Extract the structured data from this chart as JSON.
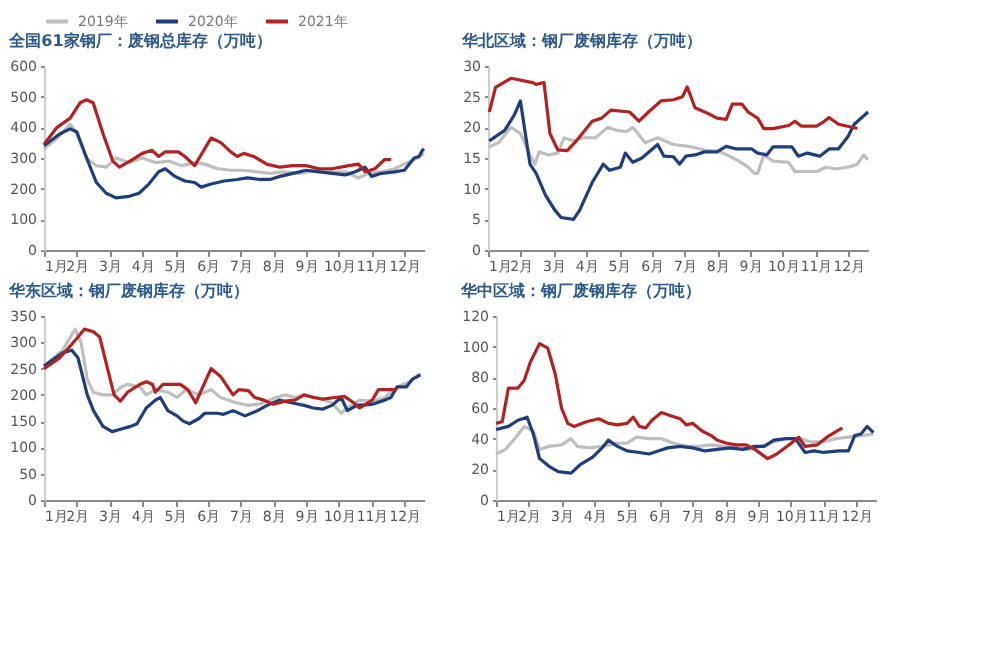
{
  "chart_data": [
    {
      "type": "line",
      "title": "全国61家钢厂：废钢总库存（万吨）",
      "xlim": [
        1,
        12.6
      ],
      "ylim": [
        0,
        600
      ],
      "yticks": [
        0,
        100,
        200,
        300,
        400,
        500,
        600
      ],
      "legend": "top",
      "grid": false,
      "xticks": [
        {
          "value": 1,
          "label": "1月"
        },
        {
          "value": 2,
          "label": "2月"
        },
        {
          "value": 3,
          "label": "3月"
        },
        {
          "value": 4,
          "label": "4月"
        },
        {
          "value": 5,
          "label": "5月"
        },
        {
          "value": 6,
          "label": "6月"
        },
        {
          "value": 7,
          "label": "7月"
        },
        {
          "value": 8,
          "label": "8月"
        },
        {
          "value": 9,
          "label": "9月"
        },
        {
          "value": 10,
          "label": "10月"
        },
        {
          "value": 11,
          "label": "11月"
        },
        {
          "value": 12,
          "label": "12月"
        }
      ],
      "series": [
        {
          "name": "2019年",
          "color": "#bfbfbf",
          "x": [
            1.0,
            1.4,
            1.8,
            2.0,
            2.3,
            2.6,
            2.9,
            3.2,
            3.6,
            4.0,
            4.4,
            4.8,
            5.2,
            5.6,
            5.9,
            6.3,
            6.7,
            7.0,
            7.5,
            7.9,
            8.3,
            8.8,
            9.3,
            9.8,
            10.2,
            10.6,
            10.9,
            11.3,
            11.7,
            12.0,
            12.4,
            12.6
          ],
          "values": [
            330,
            365,
            410,
            380,
            300,
            275,
            270,
            300,
            285,
            300,
            285,
            290,
            275,
            285,
            280,
            265,
            260,
            260,
            255,
            250,
            255,
            250,
            260,
            255,
            255,
            235,
            250,
            255,
            265,
            280,
            300,
            315
          ]
        },
        {
          "name": "2020年",
          "color": "#1f3d7a",
          "x": [
            1.0,
            1.5,
            1.8,
            2.0,
            2.3,
            2.6,
            2.9,
            3.2,
            3.6,
            3.9,
            4.2,
            4.5,
            4.7,
            5.0,
            5.3,
            5.6,
            5.8,
            6.1,
            6.5,
            6.9,
            7.2,
            7.6,
            7.9,
            8.2,
            8.6,
            9.0,
            9.4,
            9.8,
            10.2,
            10.5,
            10.8,
            11.0,
            11.3,
            11.7,
            12.0,
            12.3,
            12.45,
            12.55,
            12.6
          ],
          "values": [
            340,
            380,
            395,
            385,
            300,
            220,
            185,
            170,
            175,
            185,
            215,
            255,
            265,
            240,
            225,
            220,
            205,
            215,
            225,
            230,
            235,
            230,
            230,
            240,
            250,
            260,
            255,
            250,
            245,
            255,
            270,
            240,
            250,
            255,
            260,
            300,
            305,
            325,
            330
          ]
        },
        {
          "name": "2021年",
          "color": "#b22222",
          "x": [
            1.0,
            1.4,
            1.8,
            2.1,
            2.3,
            2.5,
            2.8,
            3.1,
            3.3,
            3.7,
            4.0,
            4.3,
            4.5,
            4.7,
            5.1,
            5.3,
            5.6,
            6.1,
            6.4,
            6.7,
            6.9,
            7.1,
            7.4,
            7.8,
            8.2,
            8.6,
            9.0,
            9.4,
            9.8,
            10.3,
            10.6,
            10.8,
            11.1,
            11.4,
            11.6
          ],
          "values": [
            345,
            400,
            430,
            480,
            490,
            480,
            380,
            290,
            270,
            295,
            315,
            325,
            305,
            320,
            320,
            305,
            275,
            365,
            350,
            320,
            305,
            315,
            305,
            280,
            270,
            275,
            275,
            265,
            265,
            275,
            280,
            255,
            265,
            295,
            295
          ]
        }
      ]
    },
    {
      "type": "line",
      "title": "华北区域：钢厂废钢库存（万吨）",
      "xlim": [
        1,
        12.6
      ],
      "ylim": [
        0,
        30
      ],
      "yticks": [
        0,
        5,
        10,
        15,
        20,
        25,
        30
      ],
      "legend": "top",
      "grid": false,
      "xticks": [
        {
          "value": 1,
          "label": "1月"
        },
        {
          "value": 2,
          "label": "2月"
        },
        {
          "value": 3,
          "label": "3月"
        },
        {
          "value": 4,
          "label": "4月"
        },
        {
          "value": 5,
          "label": "5月"
        },
        {
          "value": 6,
          "label": "6月"
        },
        {
          "value": 7,
          "label": "7月"
        },
        {
          "value": 8,
          "label": "8月"
        },
        {
          "value": 9,
          "label": "9月"
        },
        {
          "value": 10,
          "label": "10月"
        },
        {
          "value": 11,
          "label": "11月"
        },
        {
          "value": 12,
          "label": "12月"
        }
      ],
      "series": [
        {
          "name": "2019年",
          "color": "#bfbfbf",
          "x": [
            1.04,
            1.32,
            1.7,
            1.99,
            2.28,
            2.43,
            2.56,
            2.85,
            3.13,
            3.32,
            3.61,
            3.9,
            4.28,
            4.66,
            4.94,
            5.23,
            5.42,
            5.8,
            6.18,
            6.66,
            7.23,
            7.61,
            8.09,
            8.37,
            8.66,
            8.94,
            9.13,
            9.23,
            9.42,
            9.7,
            10.18,
            10.37,
            11.04,
            11.32,
            11.61,
            11.99,
            12.28,
            12.47,
            12.6
          ],
          "values": [
            16.8,
            17.5,
            20,
            19,
            15.5,
            14,
            16,
            15.5,
            15.8,
            18.3,
            17.8,
            18.3,
            18.3,
            20,
            19.5,
            19.3,
            20,
            17.5,
            18.3,
            17.2,
            16.8,
            16.3,
            16,
            15.3,
            14.5,
            13.5,
            12.5,
            12.5,
            15.5,
            14.5,
            14.3,
            12.8,
            12.8,
            13.5,
            13.2,
            13.5,
            14,
            15.5,
            14.7
          ]
        },
        {
          "name": "2020年",
          "color": "#1f3d7a",
          "x": [
            1.04,
            1.51,
            1.8,
            1.99,
            2.28,
            2.47,
            2.75,
            3.04,
            3.23,
            3.61,
            3.8,
            4.18,
            4.52,
            4.71,
            5.04,
            5.19,
            5.42,
            5.7,
            6.18,
            6.37,
            6.66,
            6.85,
            7.04,
            7.32,
            7.61,
            7.99,
            8.27,
            8.56,
            9.04,
            9.23,
            9.51,
            9.7,
            10.28,
            10.47,
            10.75,
            11.13,
            11.42,
            11.7,
            11.99,
            12.18,
            12.6
          ],
          "values": [
            17.8,
            19.5,
            22,
            24.3,
            14,
            12.5,
            9,
            6.5,
            5.3,
            5,
            6.5,
            11,
            14,
            13,
            13.5,
            15.8,
            14.3,
            15,
            17.2,
            15.3,
            15.2,
            14,
            15.3,
            15.5,
            16,
            16,
            16.9,
            16.5,
            16.5,
            15.8,
            15.5,
            16.8,
            16.8,
            15.3,
            15.8,
            15.3,
            16.5,
            16.5,
            18.5,
            20.5,
            22.5
          ]
        },
        {
          "name": "2021年",
          "color": "#b22222",
          "x": [
            1.04,
            1.23,
            1.7,
            2.37,
            2.47,
            2.71,
            2.89,
            3.13,
            3.42,
            3.7,
            4.18,
            4.47,
            4.75,
            5.32,
            5.61,
            5.9,
            6.28,
            6.66,
            6.94,
            7.08,
            7.32,
            7.7,
            7.99,
            8.27,
            8.46,
            8.75,
            8.94,
            9.23,
            9.42,
            9.7,
            10.18,
            10.37,
            10.56,
            11.03,
            11.22,
            11.41,
            11.7,
            12.28
          ],
          "values": [
            22.5,
            26.5,
            28,
            27.3,
            27,
            27.3,
            19,
            16.3,
            16.2,
            17.8,
            21,
            21.5,
            22.8,
            22.5,
            21,
            22.5,
            24.3,
            24.5,
            25,
            26.6,
            23.2,
            22.3,
            21.5,
            21.3,
            23.8,
            23.8,
            22.5,
            21.5,
            19.8,
            19.8,
            20.3,
            21,
            20.2,
            20.2,
            20.8,
            21.6,
            20.5,
            19.8
          ]
        }
      ]
    },
    {
      "type": "line",
      "title": "华东区域：钢厂废钢库存（万吨）",
      "xlim": [
        1,
        12.6
      ],
      "ylim": [
        0,
        350
      ],
      "yticks": [
        0,
        50,
        100,
        150,
        200,
        250,
        300,
        350
      ],
      "legend": "top",
      "grid": false,
      "xticks": [
        {
          "value": 1,
          "label": "1月"
        },
        {
          "value": 2,
          "label": "2月"
        },
        {
          "value": 3,
          "label": "3月"
        },
        {
          "value": 4,
          "label": "4月"
        },
        {
          "value": 5,
          "label": "5月"
        },
        {
          "value": 6,
          "label": "6月"
        },
        {
          "value": 7,
          "label": "7月"
        },
        {
          "value": 8,
          "label": "8月"
        },
        {
          "value": 9,
          "label": "9月"
        },
        {
          "value": 10,
          "label": "10月"
        },
        {
          "value": 11,
          "label": "11月"
        },
        {
          "value": 12,
          "label": "12月"
        }
      ],
      "series": [
        {
          "name": "2019年",
          "color": "#bfbfbf",
          "x": [
            1.0,
            1.57,
            1.95,
            2.13,
            2.32,
            2.51,
            2.8,
            3.08,
            3.36,
            3.55,
            3.93,
            4.12,
            4.4,
            4.78,
            5.06,
            5.35,
            5.73,
            6.1,
            6.39,
            6.86,
            7.24,
            7.62,
            8.09,
            8.37,
            8.66,
            8.94,
            9.32,
            9.79,
            10.07,
            10.26,
            10.64,
            11.02,
            11.4,
            11.78,
            12.15,
            12.49
          ],
          "values": [
            255,
            285,
            325,
            300,
            230,
            205,
            200,
            200,
            215,
            220,
            215,
            200,
            210,
            205,
            195,
            210,
            200,
            210,
            195,
            185,
            180,
            183,
            195,
            200,
            195,
            200,
            195,
            185,
            165,
            175,
            190,
            188,
            195,
            215,
            225,
            240
          ]
        },
        {
          "name": "2020年",
          "color": "#1f3d7a",
          "x": [
            1.0,
            1.57,
            1.85,
            2.04,
            2.32,
            2.51,
            2.8,
            3.08,
            3.36,
            3.65,
            3.84,
            4.12,
            4.4,
            4.55,
            4.78,
            5.06,
            5.25,
            5.44,
            5.73,
            5.91,
            6.29,
            6.48,
            6.77,
            7.14,
            7.52,
            7.81,
            8.18,
            8.56,
            8.94,
            9.22,
            9.51,
            9.79,
            10.07,
            10.26,
            10.55,
            11.02,
            11.4,
            11.59,
            11.78,
            12.06,
            12.25,
            12.49
          ],
          "values": [
            255,
            280,
            285,
            270,
            200,
            170,
            140,
            130,
            135,
            140,
            145,
            175,
            190,
            195,
            170,
            160,
            150,
            145,
            155,
            165,
            165,
            163,
            170,
            160,
            170,
            180,
            190,
            185,
            180,
            175,
            173,
            180,
            195,
            170,
            180,
            182,
            190,
            195,
            215,
            215,
            230,
            238
          ]
        },
        {
          "name": "2021年",
          "color": "#b22222",
          "x": [
            1.0,
            1.47,
            1.76,
            2.04,
            2.23,
            2.51,
            2.7,
            2.98,
            3.14,
            3.33,
            3.55,
            3.93,
            4.12,
            4.31,
            4.4,
            4.63,
            5.16,
            5.39,
            5.63,
            6.1,
            6.39,
            6.77,
            6.95,
            7.24,
            7.43,
            7.71,
            7.99,
            8.37,
            8.66,
            8.94,
            9.22,
            9.51,
            9.88,
            10.17,
            10.45,
            10.64,
            11.02,
            11.21,
            11.49,
            11.78
          ],
          "values": [
            250,
            270,
            290,
            310,
            325,
            320,
            310,
            240,
            200,
            188,
            205,
            220,
            225,
            220,
            205,
            220,
            220,
            210,
            185,
            250,
            235,
            200,
            210,
            208,
            195,
            190,
            182,
            188,
            190,
            200,
            195,
            192,
            195,
            197,
            185,
            175,
            190,
            210,
            210,
            210
          ]
        }
      ]
    },
    {
      "type": "line",
      "title": "华中区域：钢厂废钢库存（万吨）",
      "xlim": [
        1,
        12.6
      ],
      "ylim": [
        0,
        120
      ],
      "yticks": [
        0,
        20,
        40,
        60,
        80,
        100,
        120
      ],
      "legend": "top",
      "grid": false,
      "xticks": [
        {
          "value": 1,
          "label": "1月"
        },
        {
          "value": 2,
          "label": "2月"
        },
        {
          "value": 3,
          "label": "3月"
        },
        {
          "value": 4,
          "label": "4月"
        },
        {
          "value": 5,
          "label": "5月"
        },
        {
          "value": 6,
          "label": "6月"
        },
        {
          "value": 7,
          "label": "7月"
        },
        {
          "value": 8,
          "label": "8月"
        },
        {
          "value": 9,
          "label": "9月"
        },
        {
          "value": 10,
          "label": "10月"
        },
        {
          "value": 11,
          "label": "11月"
        },
        {
          "value": 12,
          "label": "12月"
        }
      ],
      "series": [
        {
          "name": "2019年",
          "color": "#bfbfbf",
          "x": [
            1.0,
            1.29,
            1.57,
            1.86,
            2.14,
            2.33,
            2.62,
            3.0,
            3.29,
            3.48,
            3.86,
            4.24,
            4.71,
            5.0,
            5.29,
            5.67,
            6.05,
            6.43,
            6.81,
            7.19,
            7.57,
            7.95,
            8.33,
            8.71,
            9.1,
            9.48,
            9.86,
            10.24,
            10.62,
            11.0,
            11.38,
            11.76,
            12.14,
            12.52
          ],
          "values": [
            30,
            33,
            40,
            48,
            45,
            33,
            35,
            36,
            40,
            35,
            34,
            35,
            37,
            37,
            41,
            40,
            40,
            37,
            35,
            35,
            36,
            35,
            34,
            33,
            35,
            38,
            40,
            40,
            38,
            38,
            40,
            41,
            42,
            43
          ]
        },
        {
          "name": "2020年",
          "color": "#1f3d7a",
          "x": [
            1.0,
            1.38,
            1.67,
            1.95,
            2.14,
            2.33,
            2.62,
            2.9,
            3.29,
            3.57,
            3.95,
            4.24,
            4.43,
            4.71,
            5.0,
            5.38,
            5.67,
            5.95,
            6.24,
            6.62,
            7.0,
            7.38,
            7.76,
            8.14,
            8.52,
            8.9,
            9.19,
            9.48,
            9.86,
            10.14,
            10.43,
            10.71,
            11.0,
            11.48,
            11.76,
            11.95,
            12.14,
            12.33,
            12.52
          ],
          "values": [
            46,
            48,
            52,
            54,
            43,
            27,
            22,
            18.5,
            17.5,
            23,
            28,
            34,
            39,
            35,
            32,
            31,
            30,
            32,
            34,
            35,
            34,
            32,
            33,
            34,
            33,
            35,
            35,
            39,
            40,
            40,
            31,
            32,
            31,
            32,
            32,
            42,
            43,
            48,
            44
          ]
        },
        {
          "name": "2021年",
          "color": "#b22222",
          "x": [
            1.0,
            1.19,
            1.38,
            1.67,
            1.86,
            2.05,
            2.33,
            2.58,
            2.81,
            3.0,
            3.19,
            3.38,
            3.76,
            4.14,
            4.43,
            4.71,
            5.0,
            5.19,
            5.38,
            5.57,
            5.76,
            6.05,
            6.33,
            6.62,
            6.81,
            7.0,
            7.29,
            7.57,
            7.76,
            8.05,
            8.33,
            8.62,
            8.9,
            9.29,
            9.57,
            9.95,
            10.24,
            10.43,
            10.81,
            11.1,
            11.57
          ],
          "values": [
            50,
            51,
            73,
            73,
            78,
            90,
            102,
            99,
            82,
            60,
            50,
            48,
            51,
            53,
            50,
            49,
            50,
            54,
            48,
            47,
            52,
            57,
            55,
            53,
            49,
            50,
            45,
            42,
            39,
            37,
            36,
            36,
            33,
            27,
            30,
            36,
            41,
            35,
            36,
            41,
            47
          ]
        }
      ]
    }
  ]
}
